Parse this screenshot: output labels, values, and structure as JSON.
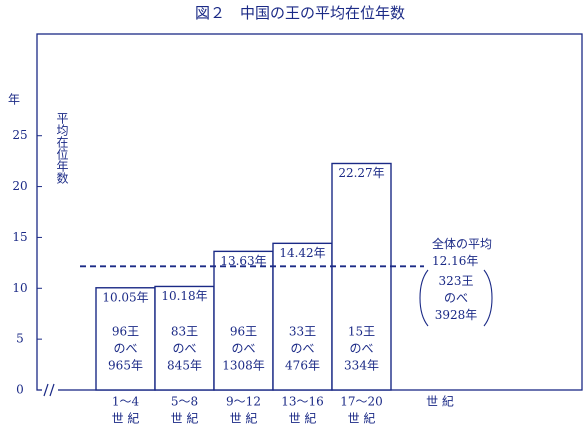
{
  "chart_data": {
    "type": "bar",
    "title": "図２　中国の王の平均在位年数",
    "y_unit": "年",
    "y_label": "平均在位年数",
    "x_label": "世 紀",
    "categories": [
      "1～4",
      "5～8",
      "9～12",
      "13～16",
      "17～20"
    ],
    "category_unit": "世 紀",
    "values": [
      10.05,
      10.18,
      13.63,
      14.42,
      22.27
    ],
    "value_labels": [
      "10.05年",
      "10.18年",
      "13.63年",
      "14.42年",
      "22.27年"
    ],
    "bar_notes": [
      [
        "96王",
        "のべ",
        "965年"
      ],
      [
        "83王",
        "のべ",
        "845年"
      ],
      [
        "96王",
        "のべ",
        "1308年"
      ],
      [
        "33王",
        "のべ",
        "476年"
      ],
      [
        "15王",
        "のべ",
        "334年"
      ]
    ],
    "reference_line": {
      "value": 12.16,
      "title": "全体の平均",
      "label": "12.16年",
      "note": [
        "323王",
        "のべ",
        "3928年"
      ]
    },
    "color": "#1b2a86",
    "ylim": [
      0,
      35
    ],
    "yticks": [
      0,
      5,
      10,
      15,
      20,
      25
    ]
  }
}
